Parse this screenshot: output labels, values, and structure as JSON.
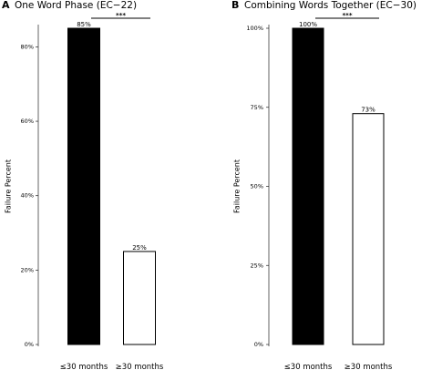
{
  "chart_data": [
    {
      "panel_letter": "A",
      "type": "bar",
      "title": "One Word Phase (EC−22)",
      "ylabel": "Failure Percent",
      "xlabel": "",
      "ylim": [
        0,
        85
      ],
      "yticks": [
        {
          "value": 0,
          "label": "0%"
        },
        {
          "value": 20,
          "label": "20%"
        },
        {
          "value": 40,
          "label": "40%"
        },
        {
          "value": 60,
          "label": "60%"
        },
        {
          "value": 80,
          "label": "80%"
        }
      ],
      "categories": [
        "≤30 months",
        "≥30 months"
      ],
      "values": [
        85,
        25
      ],
      "value_labels": [
        "85%",
        "25%"
      ],
      "fills": [
        "#000000",
        "#ffffff"
      ],
      "significance": "***",
      "grid": false
    },
    {
      "panel_letter": "B",
      "type": "bar",
      "title": "Combining Words Together (EC−30)",
      "ylabel": "Failure Percent",
      "xlabel": "",
      "ylim": [
        0,
        100
      ],
      "yticks": [
        {
          "value": 0,
          "label": "0%"
        },
        {
          "value": 25,
          "label": "25%"
        },
        {
          "value": 50,
          "label": "50%"
        },
        {
          "value": 75,
          "label": "75%"
        },
        {
          "value": 100,
          "label": "100%"
        }
      ],
      "categories": [
        "≤30 months",
        "≥30 months"
      ],
      "values": [
        100,
        73
      ],
      "value_labels": [
        "100%",
        "73%"
      ],
      "fills": [
        "#000000",
        "#ffffff"
      ],
      "significance": "***",
      "grid": false
    }
  ]
}
